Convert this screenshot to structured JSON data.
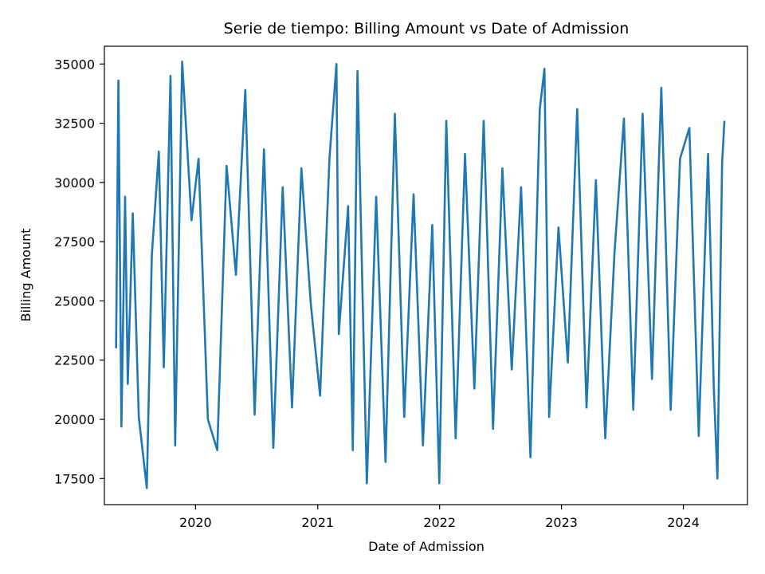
{
  "chart_data": {
    "type": "line",
    "title": "Serie de tiempo: Billing Amount vs Date of Admission",
    "xlabel": "Date of Admission",
    "ylabel": "Billing Amount",
    "xlim": [
      "2019-04-03",
      "2024-07-11"
    ],
    "ylim": [
      16400,
      35750
    ],
    "grid": false,
    "legend": "none",
    "line_color": "#1f77b4",
    "x_ticks": [
      {
        "value": "2020-01-01",
        "label": "2020"
      },
      {
        "value": "2021-01-01",
        "label": "2021"
      },
      {
        "value": "2022-01-01",
        "label": "2022"
      },
      {
        "value": "2023-01-01",
        "label": "2023"
      },
      {
        "value": "2024-01-01",
        "label": "2024"
      }
    ],
    "y_ticks": [
      {
        "value": 17500,
        "label": "17500"
      },
      {
        "value": 20000,
        "label": "20000"
      },
      {
        "value": 22500,
        "label": "22500"
      },
      {
        "value": 25000,
        "label": "25000"
      },
      {
        "value": 27500,
        "label": "27500"
      },
      {
        "value": 30000,
        "label": "30000"
      },
      {
        "value": 32500,
        "label": "32500"
      },
      {
        "value": 35000,
        "label": "35000"
      }
    ],
    "series": [
      {
        "x": [
          "2019-05-08",
          "2019-05-15",
          "2019-05-24",
          "2019-06-04",
          "2019-06-12",
          "2019-06-27",
          "2019-07-15",
          "2019-08-08",
          "2019-08-23",
          "2019-09-13",
          "2019-09-28",
          "2019-10-18",
          "2019-11-01",
          "2019-11-22",
          "2019-12-20",
          "2020-01-10",
          "2020-02-07",
          "2020-03-06",
          "2020-04-03",
          "2020-05-01",
          "2020-05-29",
          "2020-06-26",
          "2020-07-24",
          "2020-08-21",
          "2020-09-18",
          "2020-10-16",
          "2020-11-13",
          "2020-12-11",
          "2021-01-08",
          "2021-02-05",
          "2021-02-26",
          "2021-03-05",
          "2021-04-02",
          "2021-04-16",
          "2021-04-30",
          "2021-05-28",
          "2021-06-25",
          "2021-07-23",
          "2021-08-20",
          "2021-09-17",
          "2021-10-15",
          "2021-11-12",
          "2021-12-10",
          "2021-12-31",
          "2022-01-21",
          "2022-02-18",
          "2022-03-18",
          "2022-04-15",
          "2022-05-13",
          "2022-06-10",
          "2022-07-08",
          "2022-08-05",
          "2022-09-02",
          "2022-09-30",
          "2022-10-28",
          "2022-11-11",
          "2022-11-25",
          "2022-12-23",
          "2023-01-20",
          "2023-02-17",
          "2023-03-17",
          "2023-04-14",
          "2023-05-12",
          "2023-06-09",
          "2023-07-07",
          "2023-08-04",
          "2023-09-01",
          "2023-09-29",
          "2023-10-13",
          "2023-10-27",
          "2023-11-24",
          "2023-12-22",
          "2024-01-19",
          "2024-02-16",
          "2024-03-15",
          "2024-04-01",
          "2024-04-12",
          "2024-04-26",
          "2024-05-03"
        ],
        "y": [
          23000,
          34300,
          19700,
          29400,
          21500,
          28700,
          20100,
          17100,
          26900,
          31300,
          22200,
          34500,
          18900,
          35100,
          28400,
          31000,
          20000,
          18700,
          30700,
          26100,
          33900,
          20200,
          31400,
          18800,
          29800,
          20500,
          30600,
          24900,
          21000,
          31000,
          35000,
          23600,
          29000,
          18700,
          34700,
          17300,
          29400,
          18200,
          32900,
          20100,
          29500,
          18900,
          28200,
          17300,
          32600,
          19200,
          31200,
          21300,
          32600,
          19600,
          30600,
          22100,
          29800,
          18400,
          33100,
          34800,
          20100,
          28100,
          22400,
          33100,
          20500,
          30100,
          19200,
          27100,
          32700,
          20400,
          32900,
          21700,
          28000,
          34000,
          20400,
          31000,
          32300,
          19300,
          31200,
          21400,
          17500,
          30800,
          32600
        ]
      }
    ]
  }
}
